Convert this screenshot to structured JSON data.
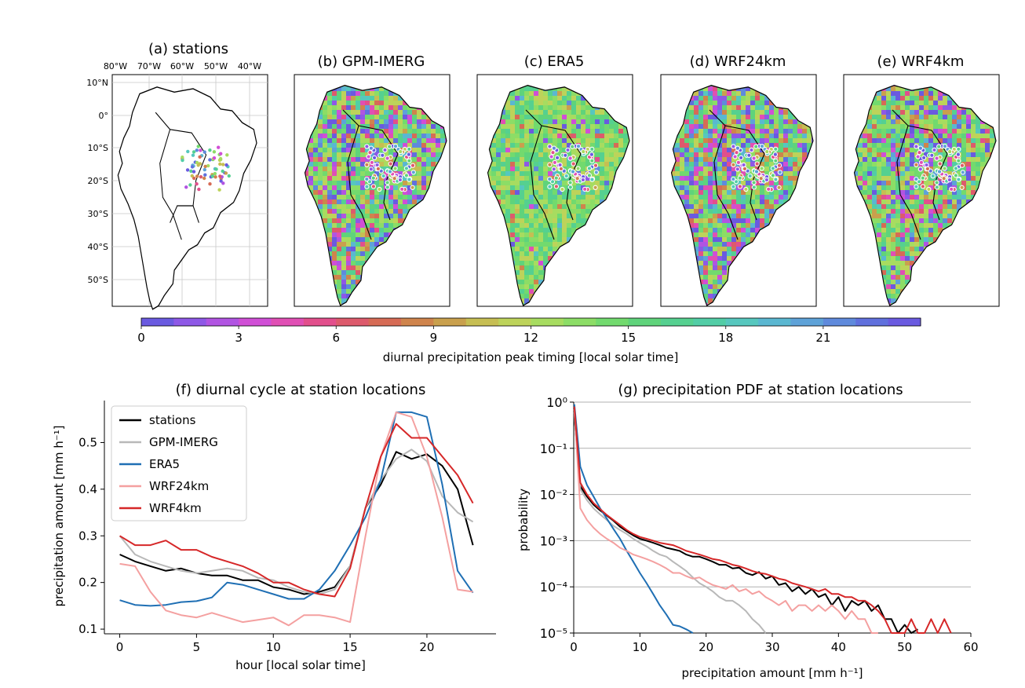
{
  "maps": {
    "titles": [
      "(a) stations",
      "(b) GPM-IMERG",
      "(c) ERA5",
      "(d) WRF24km",
      "(e) WRF4km"
    ],
    "lon_labels": [
      "80°W",
      "70°W",
      "60°W",
      "50°W",
      "40°W"
    ],
    "lat_labels": [
      "10°N",
      "0°",
      "10°S",
      "20°S",
      "30°S",
      "40°S",
      "50°S"
    ]
  },
  "colorbar": {
    "label": "diurnal precipitation peak timing [local solar time]",
    "ticks": [
      "0",
      "3",
      "6",
      "9",
      "12",
      "15",
      "18",
      "21"
    ],
    "range": [
      0,
      24
    ],
    "colors": [
      "#6a5ae0",
      "#8e58e6",
      "#b154e2",
      "#d04fd6",
      "#e04fb4",
      "#e24f8c",
      "#dd5a6c",
      "#d66b55",
      "#cf844c",
      "#c9a04d",
      "#c6be53",
      "#bdd35a",
      "#a7dc60",
      "#8cdd66",
      "#72da6e",
      "#5fd37b",
      "#55d090",
      "#52cda6",
      "#56c7be",
      "#5ab7d1",
      "#5ea2d8",
      "#5f8adc",
      "#6070dd",
      "#6a5ae0"
    ]
  },
  "chart_data": [
    {
      "type": "line",
      "title": "(f) diurnal cycle at station locations",
      "xlabel": "hour [local solar time]",
      "ylabel": "precipitation amount [mm h⁻¹]",
      "xlim": [
        -1,
        24.5
      ],
      "ylim": [
        0.09,
        0.59
      ],
      "xticks": [
        0,
        5,
        10,
        15,
        20
      ],
      "yticks": [
        0.1,
        0.2,
        0.3,
        0.4,
        0.5
      ],
      "grid": false,
      "legend": "top-left",
      "x": [
        0,
        1,
        2,
        3,
        4,
        5,
        6,
        7,
        8,
        9,
        10,
        11,
        12,
        13,
        14,
        15,
        16,
        17,
        18,
        19,
        20,
        21,
        22,
        23
      ],
      "series": [
        {
          "name": "stations",
          "color": "#000000",
          "values": [
            0.26,
            0.245,
            0.235,
            0.225,
            0.23,
            0.22,
            0.215,
            0.215,
            0.205,
            0.205,
            0.19,
            0.185,
            0.175,
            0.18,
            0.19,
            0.235,
            0.36,
            0.41,
            0.48,
            0.465,
            0.475,
            0.45,
            0.4,
            0.28
          ]
        },
        {
          "name": "GPM-IMERG",
          "color": "#b8b8b8",
          "values": [
            0.3,
            0.26,
            0.245,
            0.235,
            0.225,
            0.22,
            0.225,
            0.23,
            0.225,
            0.21,
            0.205,
            0.19,
            0.18,
            0.175,
            0.185,
            0.235,
            0.36,
            0.42,
            0.465,
            0.485,
            0.46,
            0.385,
            0.35,
            0.33
          ]
        },
        {
          "name": "ERA5",
          "color": "#1f6fb4",
          "values": [
            0.162,
            0.152,
            0.15,
            0.152,
            0.158,
            0.16,
            0.168,
            0.2,
            0.195,
            0.185,
            0.175,
            0.165,
            0.165,
            0.185,
            0.225,
            0.28,
            0.34,
            0.42,
            0.565,
            0.565,
            0.555,
            0.41,
            0.225,
            0.178
          ]
        },
        {
          "name": "WRF24km",
          "color": "#f4a0a0",
          "values": [
            0.24,
            0.235,
            0.18,
            0.14,
            0.13,
            0.125,
            0.135,
            0.125,
            0.115,
            0.12,
            0.125,
            0.108,
            0.13,
            0.13,
            0.125,
            0.115,
            0.3,
            0.47,
            0.565,
            0.555,
            0.47,
            0.34,
            0.185,
            0.18
          ]
        },
        {
          "name": "WRF4km",
          "color": "#d62728",
          "values": [
            0.3,
            0.28,
            0.28,
            0.29,
            0.27,
            0.27,
            0.255,
            0.245,
            0.235,
            0.22,
            0.2,
            0.2,
            0.185,
            0.175,
            0.17,
            0.23,
            0.36,
            0.47,
            0.54,
            0.51,
            0.51,
            0.47,
            0.43,
            0.37
          ]
        }
      ]
    },
    {
      "type": "line",
      "title": "(g) precipitation PDF at station locations",
      "xlabel": "precipitation amount [mm h⁻¹]",
      "ylabel": "probability",
      "xlim": [
        0,
        60
      ],
      "ylim": [
        1e-05,
        1
      ],
      "yscale": "log",
      "xticks": [
        0,
        10,
        20,
        30,
        40,
        50,
        60
      ],
      "ytick_labels": [
        "10⁰",
        "10⁻¹",
        "10⁻²",
        "10⁻³",
        "10⁻⁴",
        "10⁻⁵"
      ],
      "grid": "horizontal",
      "series": [
        {
          "name": "stations",
          "color": "#000000",
          "x": [
            0.1,
            1,
            2,
            3,
            4,
            5,
            6,
            7,
            8,
            9,
            10,
            11,
            12,
            13,
            14,
            15,
            16,
            17,
            18,
            19,
            20,
            21,
            22,
            23,
            24,
            25,
            26,
            27,
            28,
            29,
            30,
            31,
            32,
            33,
            34,
            35,
            36,
            37,
            38,
            39,
            40,
            41,
            42,
            43,
            44,
            45,
            46,
            47,
            48,
            49,
            50,
            51,
            52
          ],
          "values": [
            0.5,
            0.015,
            0.009,
            0.006,
            0.0045,
            0.0035,
            0.0027,
            0.002,
            0.0016,
            0.0013,
            0.0011,
            0.001,
            0.0009,
            0.0008,
            0.0007,
            0.00065,
            0.0006,
            0.0005,
            0.00045,
            0.00045,
            0.0004,
            0.00035,
            0.0003,
            0.0003,
            0.00025,
            0.00026,
            0.0002,
            0.00018,
            0.00021,
            0.00015,
            0.00017,
            0.00011,
            0.00012,
            8e-05,
            0.0001,
            7e-05,
            9e-05,
            6e-05,
            7e-05,
            4e-05,
            6e-05,
            3e-05,
            5e-05,
            4e-05,
            5e-05,
            3e-05,
            4e-05,
            2e-05,
            2e-05,
            1e-05,
            1.5e-05,
            1e-05,
            1.2e-05
          ]
        },
        {
          "name": "GPM-IMERG",
          "color": "#b8b8b8",
          "x": [
            0.1,
            1,
            2,
            3,
            4,
            5,
            6,
            7,
            8,
            9,
            10,
            11,
            12,
            13,
            14,
            15,
            16,
            17,
            18,
            19,
            20,
            21,
            22,
            23,
            24,
            25,
            26,
            27,
            28,
            29
          ],
          "values": [
            0.6,
            0.013,
            0.0075,
            0.005,
            0.0037,
            0.0028,
            0.0021,
            0.0017,
            0.0014,
            0.0011,
            0.0009,
            0.00075,
            0.0006,
            0.0005,
            0.00045,
            0.00035,
            0.00028,
            0.00022,
            0.00016,
            0.00012,
            0.0001,
            8e-05,
            6e-05,
            5e-05,
            5e-05,
            4e-05,
            3e-05,
            2e-05,
            1.5e-05,
            1e-05
          ]
        },
        {
          "name": "ERA5",
          "color": "#1f6fb4",
          "x": [
            0.1,
            1,
            2,
            3,
            4,
            5,
            6,
            7,
            8,
            9,
            10,
            11,
            12,
            13,
            14,
            15,
            16,
            17,
            18
          ],
          "values": [
            0.9,
            0.04,
            0.016,
            0.009,
            0.005,
            0.003,
            0.0018,
            0.0011,
            0.0006,
            0.00035,
            0.0002,
            0.00012,
            7e-05,
            4e-05,
            2.5e-05,
            1.5e-05,
            1.4e-05,
            1.2e-05,
            1e-05
          ]
        },
        {
          "name": "WRF24km",
          "color": "#f4a0a0",
          "x": [
            0.1,
            1,
            2,
            3,
            4,
            5,
            6,
            7,
            8,
            9,
            10,
            11,
            12,
            13,
            14,
            15,
            16,
            17,
            18,
            19,
            20,
            21,
            22,
            23,
            24,
            25,
            26,
            27,
            28,
            29,
            30,
            31,
            32,
            33,
            34,
            35,
            36,
            37,
            38,
            39,
            40,
            41,
            42,
            43,
            44,
            45,
            46
          ],
          "values": [
            0.7,
            0.005,
            0.0028,
            0.0019,
            0.0014,
            0.0011,
            0.0009,
            0.0007,
            0.0006,
            0.0005,
            0.00045,
            0.0004,
            0.00035,
            0.0003,
            0.00025,
            0.0002,
            0.0002,
            0.00017,
            0.00015,
            0.00016,
            0.00013,
            0.00011,
            0.0001,
            9e-05,
            0.00011,
            8e-05,
            9e-05,
            7e-05,
            8e-05,
            6e-05,
            5e-05,
            4e-05,
            5e-05,
            3e-05,
            4e-05,
            4e-05,
            3e-05,
            4e-05,
            3e-05,
            4e-05,
            3e-05,
            2e-05,
            3e-05,
            2e-05,
            2e-05,
            1e-05,
            1e-05
          ]
        },
        {
          "name": "WRF4km",
          "color": "#d62728",
          "x": [
            0.1,
            1,
            2,
            3,
            4,
            5,
            6,
            7,
            8,
            9,
            10,
            11,
            12,
            13,
            14,
            15,
            16,
            17,
            18,
            19,
            20,
            21,
            22,
            23,
            24,
            25,
            26,
            27,
            28,
            29,
            30,
            31,
            32,
            33,
            34,
            35,
            36,
            37,
            38,
            39,
            40,
            41,
            42,
            43,
            44,
            45,
            46,
            47,
            48,
            49,
            50,
            51,
            52,
            53,
            54,
            55,
            56,
            57
          ],
          "values": [
            0.8,
            0.018,
            0.01,
            0.0065,
            0.0048,
            0.0036,
            0.0028,
            0.0022,
            0.0017,
            0.0014,
            0.0012,
            0.0011,
            0.001,
            0.0009,
            0.00085,
            0.0008,
            0.0007,
            0.0006,
            0.00055,
            0.0005,
            0.00045,
            0.0004,
            0.00038,
            0.00034,
            0.0003,
            0.00028,
            0.00025,
            0.00022,
            0.0002,
            0.00019,
            0.00017,
            0.00015,
            0.00014,
            0.00012,
            0.00011,
            0.0001,
            9e-05,
            8e-05,
            9e-05,
            7e-05,
            7e-05,
            6e-05,
            6e-05,
            5e-05,
            5e-05,
            4e-05,
            3e-05,
            2e-05,
            1e-05,
            1e-05,
            1e-05,
            2e-05,
            1e-05,
            1e-05,
            2e-05,
            1e-05,
            2e-05,
            1e-05
          ]
        }
      ]
    }
  ]
}
